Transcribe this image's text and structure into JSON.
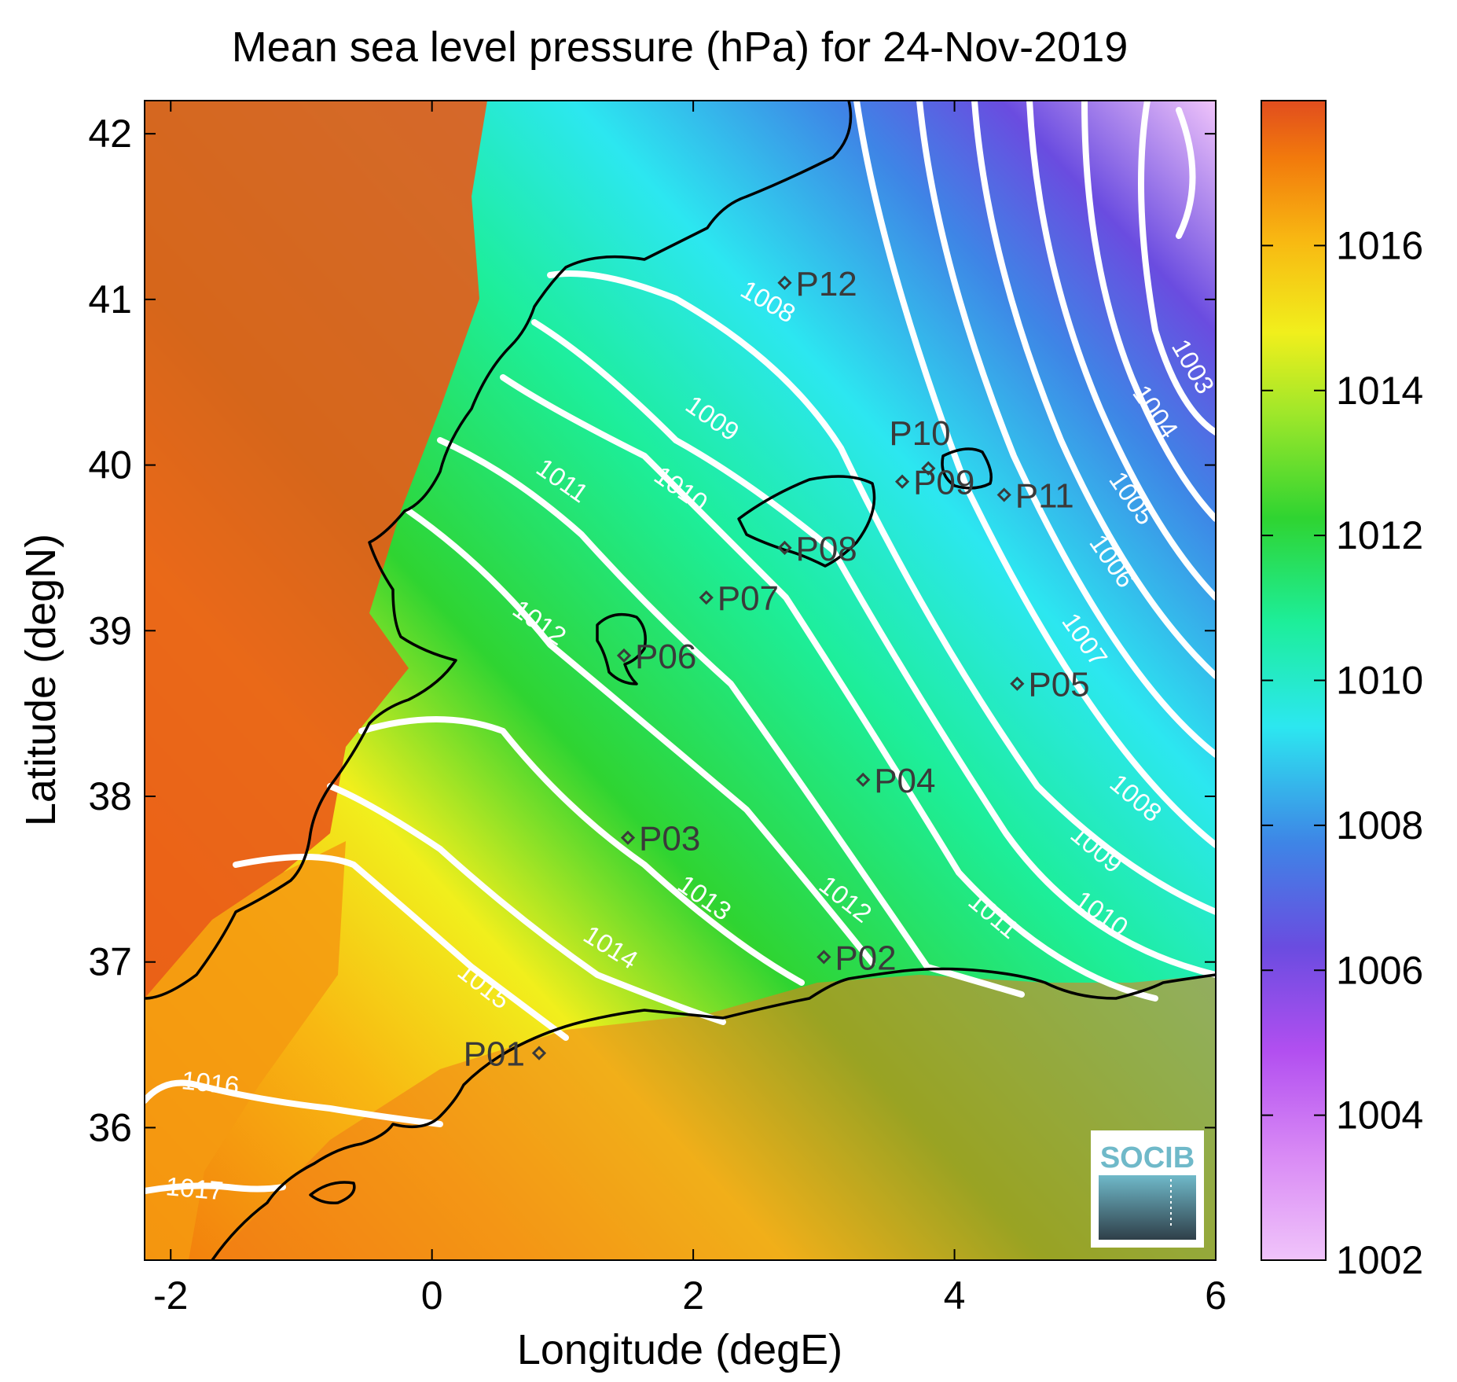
{
  "title": "Mean sea level pressure (hPa) for 24-Nov-2019",
  "axes": {
    "xlabel": "Longitude (degE)",
    "ylabel": "Latitude (degN)",
    "xlim": [
      -2.2,
      6
    ],
    "ylim": [
      35.2,
      42.2
    ],
    "x_ticks": [
      "-2",
      "0",
      "2",
      "4",
      "6"
    ],
    "y_ticks": [
      "36",
      "37",
      "38",
      "39",
      "40",
      "41",
      "42"
    ]
  },
  "colorbar": {
    "range": [
      1002,
      1018
    ],
    "ticks": [
      "1002",
      "1004",
      "1006",
      "1008",
      "1010",
      "1012",
      "1014",
      "1016"
    ],
    "colormap": [
      "#f0c4fa",
      "#b24ff0",
      "#6a4ce0",
      "#3e85e6",
      "#2ce7f0",
      "#1dee9a",
      "#2fd431",
      "#9fe72a",
      "#f1ef1c",
      "#f8b812",
      "#f27a0c",
      "#e14d1e"
    ]
  },
  "contour_labels": [
    "1003",
    "1004",
    "1005",
    "1006",
    "1007",
    "1008",
    "1009",
    "1010",
    "1011",
    "1012",
    "1013",
    "1014",
    "1015",
    "1016",
    "1017",
    "1008",
    "1009",
    "1010",
    "1011",
    "1012"
  ],
  "stations": [
    {
      "label": "P01",
      "lon": 0.82,
      "lat": 36.45
    },
    {
      "label": "P02",
      "lon": 3.0,
      "lat": 37.03
    },
    {
      "label": "P03",
      "lon": 1.5,
      "lat": 37.75
    },
    {
      "label": "P04",
      "lon": 3.3,
      "lat": 38.1
    },
    {
      "label": "P05",
      "lon": 4.48,
      "lat": 38.68
    },
    {
      "label": "P06",
      "lon": 1.47,
      "lat": 38.85
    },
    {
      "label": "P07",
      "lon": 2.1,
      "lat": 39.2
    },
    {
      "label": "P08",
      "lon": 2.7,
      "lat": 39.5
    },
    {
      "label": "P09",
      "lon": 3.6,
      "lat": 39.9
    },
    {
      "label": "P10",
      "lon": 3.8,
      "lat": 39.98
    },
    {
      "label": "P11",
      "lon": 4.38,
      "lat": 39.82
    },
    {
      "label": "P12",
      "lon": 2.7,
      "lat": 41.1
    }
  ],
  "logo": {
    "text": "SOCIB"
  }
}
